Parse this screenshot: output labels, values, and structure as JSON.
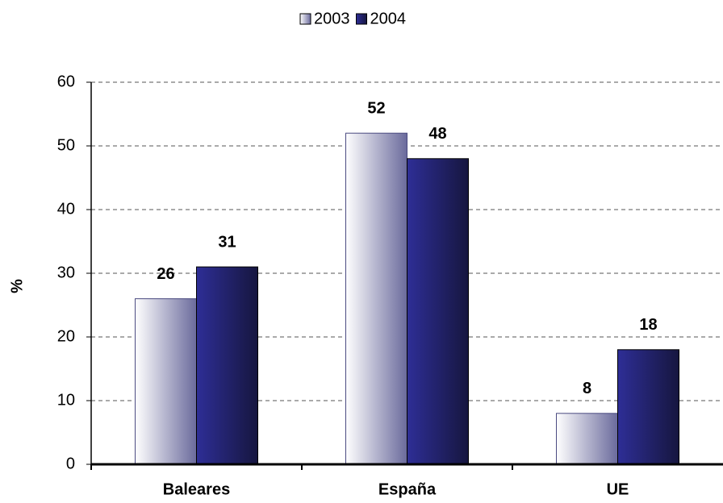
{
  "chart_data": {
    "type": "bar",
    "y_label": "%",
    "categories": [
      "Baleares",
      "España",
      "UE"
    ],
    "series": [
      {
        "name": "2003",
        "color": "#6a6a9c",
        "values": [
          26,
          52,
          8
        ]
      },
      {
        "name": "2004",
        "color": "#2e2e96",
        "values": [
          31,
          48,
          18
        ]
      }
    ],
    "ylim": [
      0,
      60
    ],
    "yticks": [
      0,
      10,
      20,
      30,
      40,
      50,
      60
    ],
    "grid": true,
    "legend": "top"
  }
}
